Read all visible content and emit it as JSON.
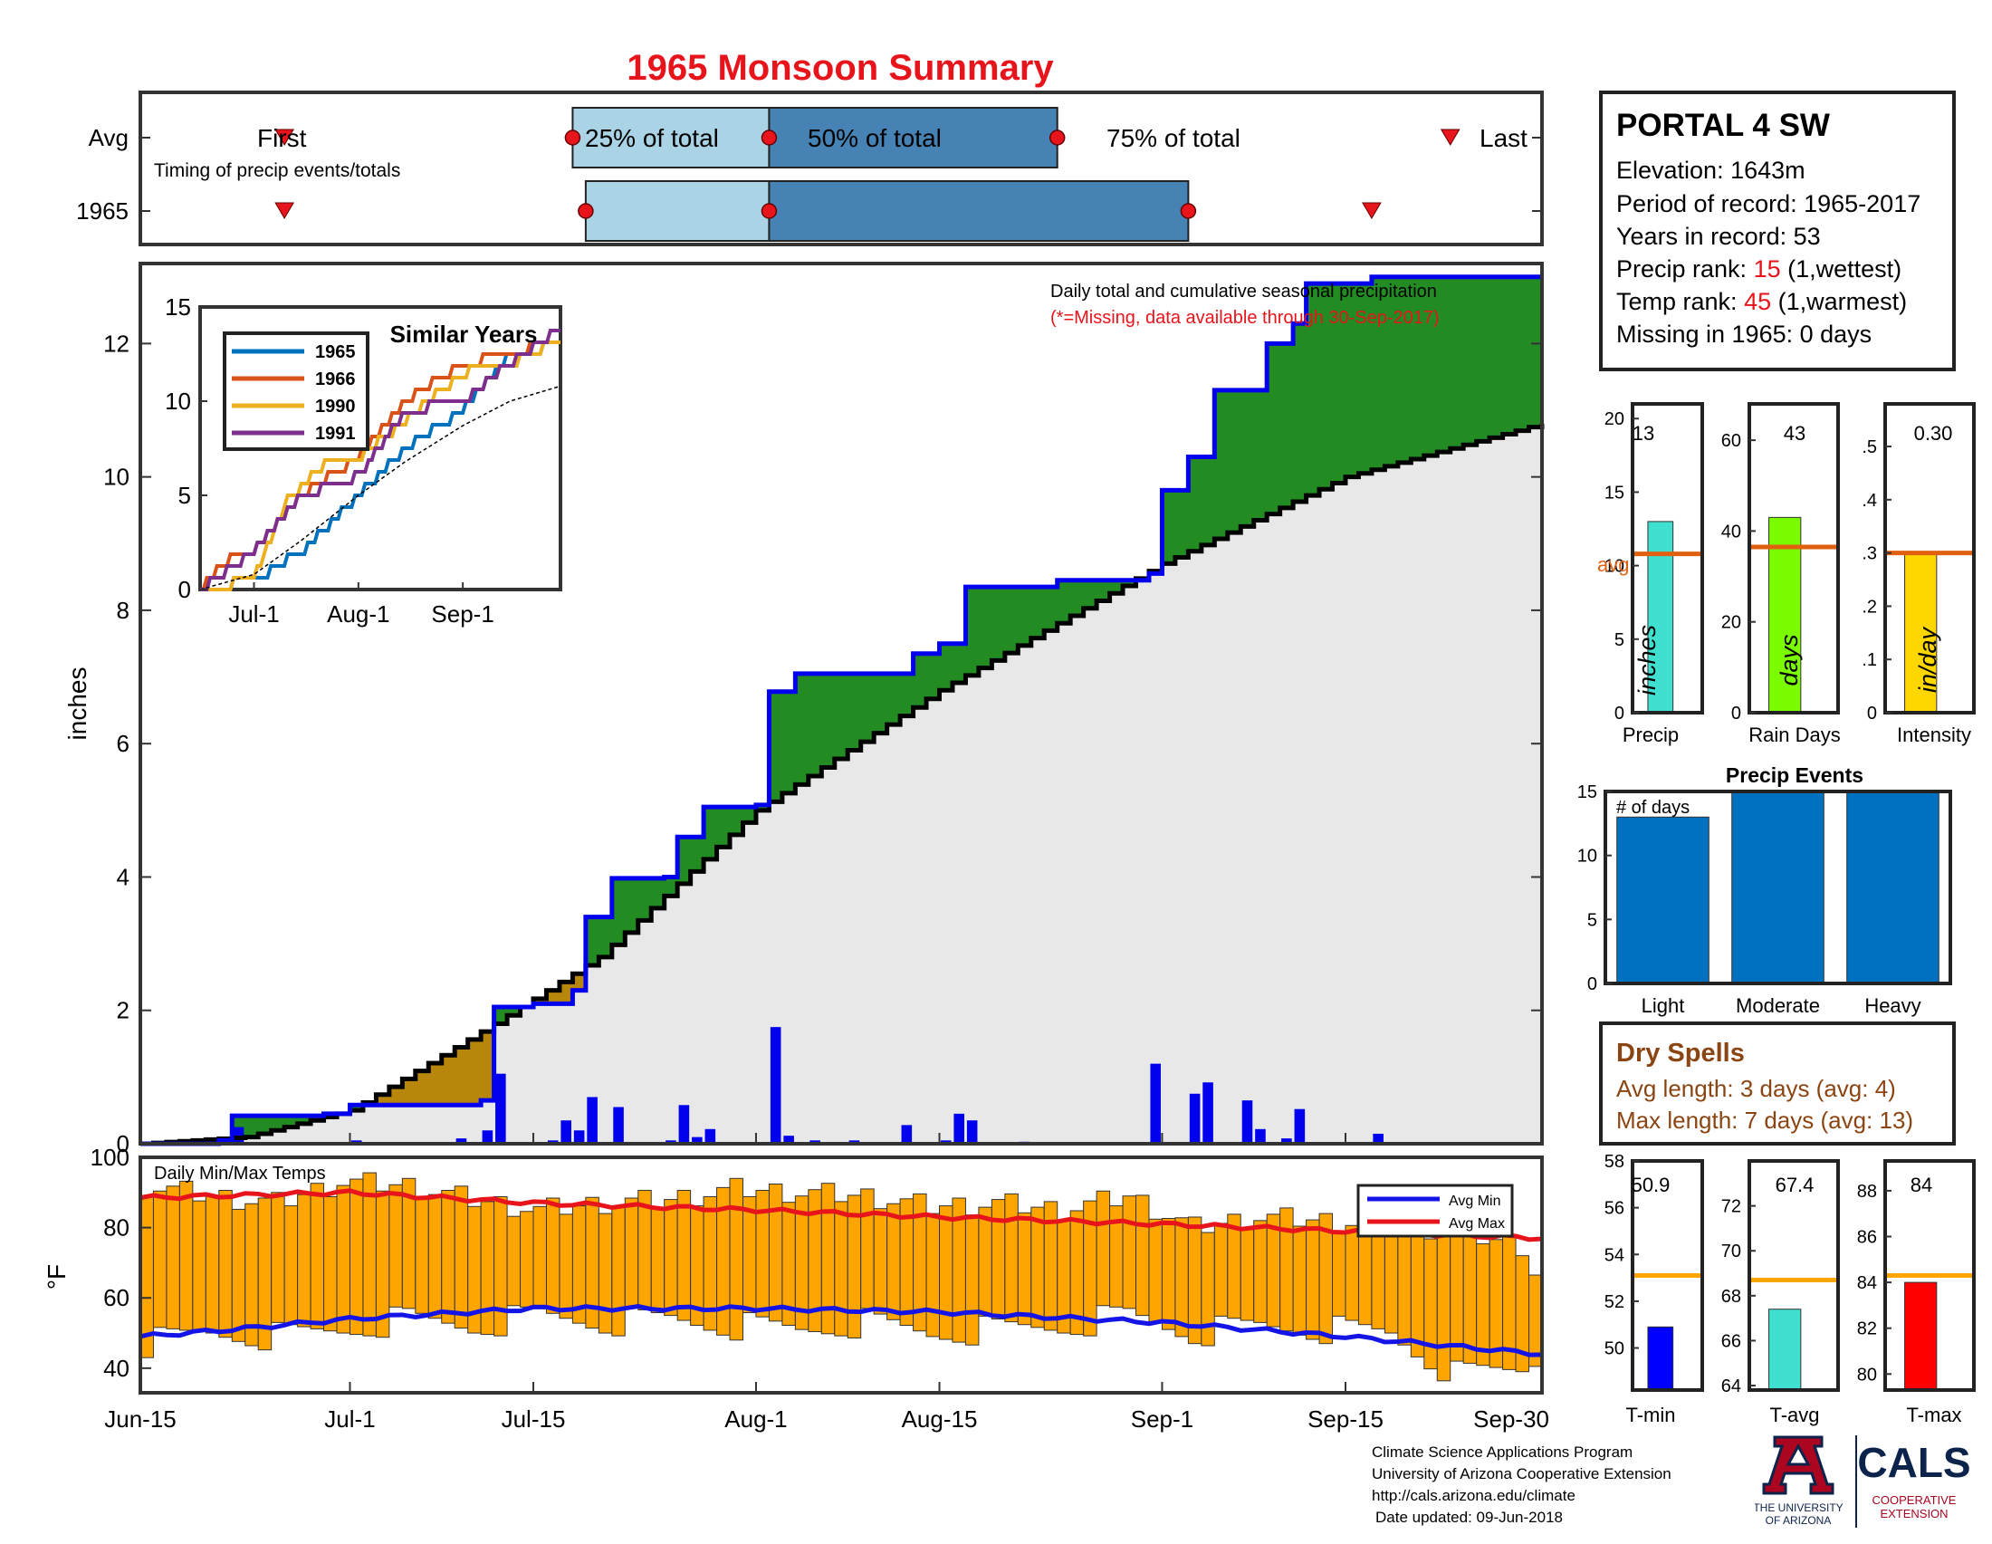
{
  "title": "1965 Monsoon Summary",
  "timing": {
    "avg_label": "Avg",
    "year_label": "1965",
    "subtitle": "Timing of precip events/totals",
    "first_label": "First",
    "last_label": "Last",
    "p25_label": "25% of total",
    "p50_label": "50% of total",
    "p75_label": "75% of total"
  },
  "station": {
    "name": "PORTAL 4 SW",
    "elevation_label": "Elevation: 1643m",
    "period_label": "Period of record: 1965-2017",
    "years_label": "Years in record: 53",
    "precip_rank_prefix": "Precip rank: ",
    "precip_rank": "15",
    "precip_rank_suffix": " (1,wettest)",
    "temp_rank_prefix": "Temp rank: ",
    "temp_rank": "45",
    "temp_rank_suffix": " (1,warmest)",
    "missing_label": "Missing in 1965: 0 days"
  },
  "main_chart": {
    "ylabel": "inches",
    "note": "Daily total and cumulative seasonal precipitation",
    "missing_note": "(*=Missing, data available through 30-Sep-2017)"
  },
  "inset": {
    "title": "Similar Years"
  },
  "temps": {
    "title": "Daily Min/Max Temps",
    "ylabel": "°F",
    "legend_min": "Avg Min",
    "legend_max": "Avg Max"
  },
  "stats": {
    "precip": {
      "label": "Precip",
      "value": "13",
      "unit": "inches",
      "avg_label": "avg"
    },
    "raindays": {
      "label": "Rain Days",
      "value": "43",
      "unit": "days"
    },
    "intensity": {
      "label": "Intensity",
      "value": "0.30",
      "unit": "in/day"
    },
    "tmin": {
      "label": "T-min",
      "value": "50.9"
    },
    "tavg": {
      "label": "T-avg",
      "value": "67.4"
    },
    "tmax": {
      "label": "T-max",
      "value": "84"
    }
  },
  "events": {
    "title": "Precip Events",
    "ylabel": "# of days"
  },
  "dry_spells": {
    "title": "Dry Spells",
    "avg_length": "Avg length: 3 days (avg: 4)",
    "max_length": "Max length: 7 days (avg: 13)"
  },
  "credits": {
    "line1": "Climate Science Applications Program",
    "line2": "University of Arizona Cooperative Extension",
    "line3": "http://cals.arizona.edu/climate",
    "line4": "Date updated: 09-Jun-2018",
    "ua_line1": "THE UNIVERSITY",
    "ua_line2": "OF ARIZONA",
    "cals": "CALS",
    "cals_sub1": "COOPERATIVE",
    "cals_sub2": "EXTENSION"
  },
  "colors": {
    "title_red": "#e8141b",
    "timing_light": "#aad4e6",
    "timing_dark": "#4682b4",
    "marker_red": "#e8141b",
    "above_avg": "#228b22",
    "below_avg": "#b8860b",
    "avg_fill": "#e8e8e8",
    "season_line": "#0000ee",
    "daily_bar": "#0000ee",
    "temp_bar": "#ffa500",
    "avg_min_line": "#1414e6",
    "avg_max_line": "#e8141b",
    "precip_bar": "#40e0d0",
    "raindays_bar": "#7cfc00",
    "intensity_bar": "#ffd700",
    "events_bar": "#0070c0",
    "avg_marker": "#e06010",
    "tmin_bar": "#0000ff",
    "tavg_bar": "#40e0d0",
    "tmax_bar": "#ff0000",
    "temp_avg_marker": "#ffa500",
    "dry_spell_text": "#8b4513"
  },
  "chart_data": [
    {
      "id": "timing",
      "type": "bar",
      "title": "Timing of precip events/totals",
      "x_axis": "date",
      "series": [
        {
          "name": "Avg",
          "first": "Jun-26",
          "p25": "Jul-18",
          "p50": "Aug-2",
          "p75": "Aug-24",
          "last": "Sep-23"
        },
        {
          "name": "1965",
          "first": "Jun-26",
          "p25": "Jul-19",
          "p50": "Aug-2",
          "p75": "Sep-3",
          "last": "Sep-17"
        }
      ]
    },
    {
      "id": "cumulative",
      "type": "area",
      "title": "Daily total and cumulative seasonal precipitation",
      "xlabel": "",
      "ylabel": "inches",
      "x_ticks": [
        "Jun-15",
        "Jul-1",
        "Jul-15",
        "Aug-1",
        "Aug-15",
        "Sep-1",
        "Sep-15",
        "Sep-30"
      ],
      "ylim": [
        0,
        13.2
      ],
      "y_ticks": [
        0,
        2,
        4,
        6,
        8,
        10,
        12
      ],
      "legend": "none",
      "average_cumulative_points": [
        [
          "Jun-15",
          0
        ],
        [
          "Jun-23",
          0.1
        ],
        [
          "Jul-1",
          0.5
        ],
        [
          "Jul-12",
          1.8
        ],
        [
          "Jul-20",
          2.8
        ],
        [
          "Aug-1",
          5.0
        ],
        [
          "Aug-15",
          6.8
        ],
        [
          "Sep-1",
          8.7
        ],
        [
          "Sep-15",
          10.0
        ],
        [
          "Sep-30",
          10.8
        ]
      ],
      "season_cumulative_points": [
        [
          "Jun-15",
          0
        ],
        [
          "Jun-21",
          0.05
        ],
        [
          "Jun-22",
          0.42
        ],
        [
          "Jun-29",
          0.45
        ],
        [
          "Jul-1",
          0.58
        ],
        [
          "Jul-11",
          0.65
        ],
        [
          "Jul-12",
          2.05
        ],
        [
          "Jul-15",
          2.1
        ],
        [
          "Jul-18",
          2.3
        ],
        [
          "Jul-19",
          3.4
        ],
        [
          "Jul-21",
          3.98
        ],
        [
          "Jul-25",
          4.0
        ],
        [
          "Jul-26",
          4.6
        ],
        [
          "Jul-28",
          5.05
        ],
        [
          "Aug-1",
          5.08
        ],
        [
          "Aug-2",
          6.78
        ],
        [
          "Aug-4",
          7.05
        ],
        [
          "Aug-13",
          7.35
        ],
        [
          "Aug-15",
          7.5
        ],
        [
          "Aug-17",
          8.35
        ],
        [
          "Aug-24",
          8.45
        ],
        [
          "Aug-31",
          8.55
        ],
        [
          "Sep-1",
          9.8
        ],
        [
          "Sep-3",
          10.3
        ],
        [
          "Sep-5",
          11.3
        ],
        [
          "Sep-9",
          12.0
        ],
        [
          "Sep-11",
          12.3
        ],
        [
          "Sep-12",
          12.9
        ],
        [
          "Sep-17",
          13.0
        ],
        [
          "Sep-30",
          13.0
        ]
      ],
      "daily_precip": [
        [
          "Jun-21",
          0.05
        ],
        [
          "Jun-22",
          0.25
        ],
        [
          "Jul-1",
          0.05
        ],
        [
          "Jul-9",
          0.08
        ],
        [
          "Jul-11",
          0.2
        ],
        [
          "Jul-12",
          1.05
        ],
        [
          "Jul-16",
          0.05
        ],
        [
          "Jul-17",
          0.35
        ],
        [
          "Jul-18",
          0.2
        ],
        [
          "Jul-19",
          0.7
        ],
        [
          "Jul-21",
          0.55
        ],
        [
          "Jul-25",
          0.05
        ],
        [
          "Jul-26",
          0.58
        ],
        [
          "Jul-27",
          0.1
        ],
        [
          "Jul-28",
          0.22
        ],
        [
          "Aug-1",
          0.02
        ],
        [
          "Aug-2",
          1.75
        ],
        [
          "Aug-3",
          0.12
        ],
        [
          "Aug-5",
          0.05
        ],
        [
          "Aug-8",
          0.05
        ],
        [
          "Aug-12",
          0.28
        ],
        [
          "Aug-14",
          0.02
        ],
        [
          "Aug-15",
          0.05
        ],
        [
          "Aug-16",
          0.45
        ],
        [
          "Aug-17",
          0.35
        ],
        [
          "Aug-21",
          0.03
        ],
        [
          "Aug-31",
          1.2
        ],
        [
          "Sep-3",
          0.75
        ],
        [
          "Sep-4",
          0.92
        ],
        [
          "Sep-7",
          0.65
        ],
        [
          "Sep-8",
          0.22
        ],
        [
          "Sep-10",
          0.08
        ],
        [
          "Sep-11",
          0.52
        ],
        [
          "Sep-17",
          0.15
        ]
      ]
    },
    {
      "id": "similar_years",
      "type": "line",
      "title": "Similar Years",
      "x_ticks": [
        "Jul-1",
        "Aug-1",
        "Sep-1"
      ],
      "ylim": [
        0,
        15
      ],
      "y_ticks": [
        0,
        5,
        10,
        15
      ],
      "legend": "top-left",
      "series": [
        {
          "name": "1965",
          "color": "#0072bd",
          "points": [
            [
              "Jun-15",
              0
            ],
            [
              "Jul-1",
              0.5
            ],
            [
              "Jul-15",
              2.0
            ],
            [
              "Aug-1",
              5.0
            ],
            [
              "Aug-15",
              7.5
            ],
            [
              "Sep-1",
              9.5
            ],
            [
              "Sep-15",
              12.5
            ],
            [
              "Sep-30",
              13.0
            ]
          ]
        },
        {
          "name": "1966",
          "color": "#d95319",
          "points": [
            [
              "Jun-15",
              0
            ],
            [
              "Jun-22",
              1.5
            ],
            [
              "Jul-1",
              2.0
            ],
            [
              "Jul-15",
              5.0
            ],
            [
              "Aug-1",
              7.0
            ],
            [
              "Aug-15",
              10.0
            ],
            [
              "Sep-1",
              12.0
            ],
            [
              "Sep-15",
              12.5
            ],
            [
              "Sep-30",
              13.3
            ]
          ]
        },
        {
          "name": "1990",
          "color": "#edb120",
          "points": [
            [
              "Jun-15",
              0
            ],
            [
              "Jul-1",
              0.5
            ],
            [
              "Jul-10",
              4.5
            ],
            [
              "Jul-20",
              6.5
            ],
            [
              "Aug-1",
              7.0
            ],
            [
              "Aug-15",
              9.0
            ],
            [
              "Sep-1",
              11.5
            ],
            [
              "Sep-15",
              12.0
            ],
            [
              "Sep-30",
              13.3
            ]
          ]
        },
        {
          "name": "1991",
          "color": "#7e2f8e",
          "points": [
            [
              "Jun-15",
              0
            ],
            [
              "Jul-1",
              2.0
            ],
            [
              "Jul-15",
              5.0
            ],
            [
              "Aug-1",
              6.0
            ],
            [
              "Aug-15",
              9.5
            ],
            [
              "Sep-1",
              10.0
            ],
            [
              "Sep-15",
              12.0
            ],
            [
              "Sep-30",
              13.8
            ]
          ]
        },
        {
          "name": "Average",
          "color": "#000000",
          "dashed": true,
          "points": [
            [
              "Jun-15",
              0
            ],
            [
              "Jul-1",
              0.8
            ],
            [
              "Jul-15",
              2.6
            ],
            [
              "Aug-1",
              5.0
            ],
            [
              "Aug-15",
              6.8
            ],
            [
              "Sep-1",
              8.7
            ],
            [
              "Sep-15",
              10.0
            ],
            [
              "Sep-30",
              10.8
            ]
          ]
        }
      ]
    },
    {
      "id": "temps",
      "type": "bar",
      "title": "Daily Min/Max Temps",
      "ylabel": "°F",
      "ylim": [
        33,
        100
      ],
      "y_ticks": [
        40,
        60,
        80,
        100
      ],
      "legend": "top-right",
      "avg_max_points": [
        [
          "Jun-15",
          88.5
        ],
        [
          "Jul-1",
          90
        ],
        [
          "Jul-15",
          87
        ],
        [
          "Aug-1",
          85
        ],
        [
          "Aug-15",
          83
        ],
        [
          "Sep-1",
          81
        ],
        [
          "Sep-15",
          79
        ],
        [
          "Sep-30",
          77
        ]
      ],
      "avg_min_points": [
        [
          "Jun-15",
          49
        ],
        [
          "Jun-22",
          51
        ],
        [
          "Jul-1",
          54
        ],
        [
          "Jul-15",
          57
        ],
        [
          "Aug-1",
          57
        ],
        [
          "Aug-15",
          56
        ],
        [
          "Sep-1",
          53
        ],
        [
          "Sep-15",
          49
        ],
        [
          "Sep-30",
          44
        ]
      ],
      "daily_temp_ranges": [
        [
          "Jun-15",
          92,
          47
        ],
        [
          "Jun-20",
          89,
          50
        ],
        [
          "Jun-25",
          87,
          49
        ],
        [
          "Jun-30",
          93,
          51
        ],
        [
          "Jul-5",
          92,
          54
        ],
        [
          "Jul-10",
          88,
          52
        ],
        [
          "Jul-15",
          85,
          55
        ],
        [
          "Jul-20",
          87,
          53
        ],
        [
          "Jul-25",
          88,
          54
        ],
        [
          "Jul-30",
          91,
          52
        ],
        [
          "Aug-4",
          90,
          51
        ],
        [
          "Aug-9",
          89,
          53
        ],
        [
          "Aug-14",
          86,
          50
        ],
        [
          "Aug-19",
          87,
          51
        ],
        [
          "Aug-24",
          85,
          52
        ],
        [
          "Aug-29",
          89,
          55
        ],
        [
          "Sep-3",
          80,
          50
        ],
        [
          "Sep-8",
          83,
          52
        ],
        [
          "Sep-13",
          82,
          51
        ],
        [
          "Sep-18",
          81,
          50
        ],
        [
          "Sep-23",
          79,
          38
        ],
        [
          "Sep-28",
          75,
          40
        ],
        [
          "Sep-30",
          60,
          45
        ]
      ]
    },
    {
      "id": "season_stats",
      "type": "bar",
      "categories": [
        "Precip",
        "Rain Days",
        "Intensity"
      ],
      "values": [
        13,
        43,
        0.3
      ],
      "averages": [
        10.8,
        36.5,
        0.3
      ],
      "ylims": [
        [
          0,
          21
        ],
        [
          0,
          68
        ],
        [
          0,
          0.58
        ]
      ]
    },
    {
      "id": "precip_events",
      "type": "bar",
      "title": "Precip Events",
      "ylabel": "# of days",
      "categories": [
        "Light",
        "Moderate",
        "Heavy"
      ],
      "values": [
        13,
        15,
        15
      ],
      "ylim": [
        0,
        15
      ],
      "y_ticks": [
        0,
        5,
        10,
        15
      ]
    },
    {
      "id": "temp_stats",
      "type": "bar",
      "categories": [
        "T-min",
        "T-avg",
        "T-max"
      ],
      "values": [
        50.9,
        67.4,
        84
      ],
      "averages": [
        53.1,
        68.7,
        84.3
      ],
      "ylims": [
        [
          48.2,
          58
        ],
        [
          63.8,
          74
        ],
        [
          79.3,
          89.3
        ]
      ]
    }
  ]
}
